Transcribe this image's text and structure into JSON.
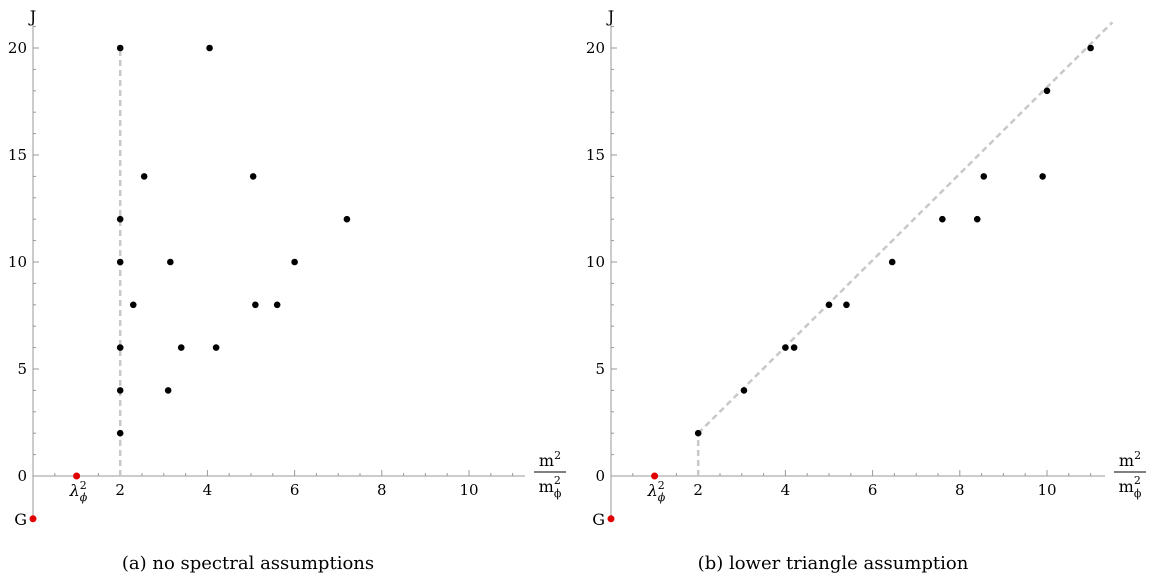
{
  "chart_data": [
    {
      "type": "scatter",
      "caption": "(a) no spectral assumptions",
      "ylabel": "J",
      "xlabel": {
        "numerator": "m",
        "numerator_sup": "2",
        "denominator": "m",
        "denominator_sub": "ϕ",
        "denominator_sup": "2"
      },
      "xlim": [
        0,
        11.3
      ],
      "ylim": [
        -2.1,
        21.5
      ],
      "x_ticks": [
        2,
        4,
        6,
        8,
        10
      ],
      "y_ticks": [
        0,
        5,
        10,
        15,
        20
      ],
      "points": [
        [
          2,
          2
        ],
        [
          2,
          4
        ],
        [
          2,
          6
        ],
        [
          2,
          10
        ],
        [
          2,
          12
        ],
        [
          2,
          20
        ],
        [
          2.3,
          8
        ],
        [
          2.55,
          14
        ],
        [
          3.1,
          4
        ],
        [
          3.15,
          10
        ],
        [
          3.4,
          6
        ],
        [
          4.05,
          20
        ],
        [
          4.2,
          6
        ],
        [
          5.05,
          14
        ],
        [
          5.1,
          8
        ],
        [
          5.6,
          8
        ],
        [
          6.0,
          10
        ],
        [
          7.2,
          12
        ]
      ],
      "guide": {
        "style": "vertical",
        "x": 2,
        "y_from": 0,
        "y_to": 20
      },
      "special_points": [
        {
          "label": "G",
          "x": 0,
          "y": -2,
          "color": "#e00000"
        },
        {
          "label": "λ",
          "label_sup": "2",
          "label_sub": "ϕ",
          "x": 1,
          "y": 0,
          "color": "#e00000"
        }
      ],
      "grid": false
    },
    {
      "type": "scatter",
      "caption": "(b) lower triangle assumption",
      "ylabel": "J",
      "xlabel": {
        "numerator": "m",
        "numerator_sup": "2",
        "denominator": "m",
        "denominator_sub": "ϕ",
        "denominator_sup": "2"
      },
      "xlim": [
        0,
        11.3
      ],
      "ylim": [
        -2.1,
        21.5
      ],
      "x_ticks": [
        2,
        4,
        6,
        8,
        10
      ],
      "y_ticks": [
        0,
        5,
        10,
        15,
        20
      ],
      "points": [
        [
          2,
          2
        ],
        [
          3.05,
          4
        ],
        [
          4.0,
          6
        ],
        [
          4.2,
          6
        ],
        [
          5.0,
          8
        ],
        [
          5.4,
          8
        ],
        [
          6.45,
          10
        ],
        [
          7.6,
          12
        ],
        [
          8.4,
          12
        ],
        [
          8.55,
          14
        ],
        [
          9.9,
          14
        ],
        [
          10.0,
          18
        ],
        [
          11.0,
          20
        ]
      ],
      "guide": {
        "style": "vertical+diagonal",
        "x": 2,
        "y_from": 0,
        "y_to": 2,
        "diag_from": [
          2,
          2
        ],
        "diag_to": [
          11.5,
          21.2
        ]
      },
      "special_points": [
        {
          "label": "G",
          "x": 0,
          "y": -2,
          "color": "#e00000"
        },
        {
          "label": "λ",
          "label_sup": "2",
          "label_sub": "ϕ",
          "x": 1,
          "y": 0,
          "color": "#e00000"
        }
      ],
      "grid": false
    }
  ]
}
